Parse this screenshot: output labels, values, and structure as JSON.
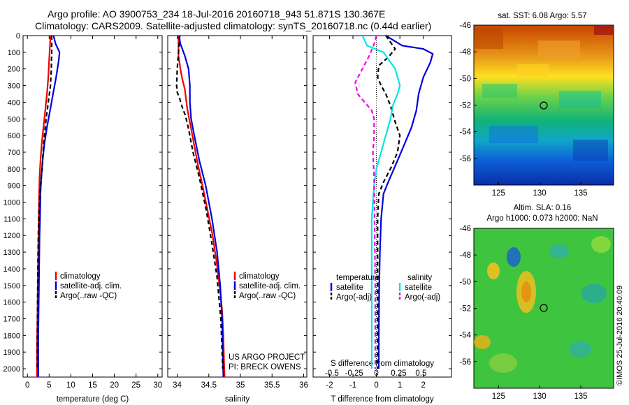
{
  "header": {
    "line1": "Argo profile: AO 3900753_234 18-Jul-2016 20160718_943 51.871S 130.367E",
    "line2": "Climatology: CARS2009. Satellite-adjusted climatology: synTS_20160718.nc (0.44d earlier)"
  },
  "credit": "©IMOS 25-Jul-2016 20:40:09",
  "project": {
    "line1": "US ARGO PROJECT",
    "line2": "PI: BRECK OWENS"
  },
  "colors": {
    "red": "#ee0000",
    "blue": "#0000dd",
    "black": "#000000",
    "cyan": "#00e5e5",
    "magenta": "#ee00ee"
  },
  "chart_data": [
    {
      "type": "line",
      "id": "temp",
      "xlabel": "temperature (deg C)",
      "ylabel": "",
      "xlim": [
        -1,
        31
      ],
      "ylim": [
        2050,
        0
      ],
      "xticks": [
        0,
        5,
        10,
        15,
        20,
        25,
        30
      ],
      "yticks": [
        0,
        100,
        200,
        300,
        400,
        500,
        600,
        700,
        800,
        900,
        1000,
        1100,
        1200,
        1300,
        1400,
        1500,
        1600,
        1700,
        1800,
        1900,
        2000
      ],
      "legend": [
        "climatology",
        "satellite-adj. clim.",
        "Argo(..raw -QC)"
      ],
      "legend_position": "lower-right",
      "series": [
        {
          "name": "climatology",
          "color": "#ee0000",
          "style": "solid",
          "x": [
            5.3,
            5.2,
            5.0,
            4.8,
            4.5,
            4.1,
            3.7,
            3.3,
            3.0,
            2.8,
            2.7,
            2.6,
            2.55,
            2.5,
            2.45,
            2.4,
            2.35,
            2.3,
            2.25,
            2.2,
            2.2
          ],
          "y": [
            0,
            50,
            150,
            250,
            350,
            450,
            550,
            650,
            750,
            850,
            950,
            1100,
            1200,
            1300,
            1400,
            1500,
            1600,
            1700,
            1800,
            1900,
            2050
          ]
        },
        {
          "name": "satellite-adj. clim.",
          "color": "#0000dd",
          "style": "solid",
          "x": [
            6.0,
            6.5,
            7.4,
            7.2,
            6.6,
            5.9,
            5.2,
            4.5,
            3.9,
            3.5,
            3.2,
            3.0,
            2.9,
            2.8,
            2.75,
            2.7,
            2.65,
            2.6,
            2.55,
            2.5,
            2.5
          ],
          "y": [
            0,
            50,
            100,
            150,
            250,
            350,
            450,
            550,
            650,
            750,
            850,
            950,
            1100,
            1200,
            1300,
            1400,
            1500,
            1600,
            1700,
            1800,
            2050
          ]
        },
        {
          "name": "Argo(..raw -QC)",
          "color": "#000000",
          "style": "dashed",
          "x": [
            5.6,
            5.6,
            5.5,
            5.3,
            4.8,
            4.3,
            3.9,
            3.6,
            3.4,
            3.0,
            2.8,
            2.6,
            2.5,
            2.45,
            2.4,
            2.35,
            2.3,
            2.3
          ],
          "y": [
            0,
            100,
            200,
            300,
            400,
            500,
            600,
            700,
            800,
            900,
            1000,
            1100,
            1200,
            1300,
            1400,
            1600,
            1800,
            2000
          ]
        }
      ]
    },
    {
      "type": "line",
      "id": "sal",
      "xlabel": "salinity",
      "ylabel": "",
      "xlim": [
        33.85,
        36.05
      ],
      "ylim": [
        2050,
        0
      ],
      "xticks": [
        34,
        34.5,
        35,
        35.5,
        36
      ],
      "legend": [
        "climatology",
        "satellite-adj. clim.",
        "Argo(..raw -QC)"
      ],
      "legend_position": "lower-right",
      "series": [
        {
          "name": "climatology",
          "color": "#ee0000",
          "style": "solid",
          "x": [
            34.02,
            34.02,
            34.05,
            34.08,
            34.12,
            34.14,
            34.16,
            34.2,
            34.25,
            34.32,
            34.4,
            34.48,
            34.56,
            34.62,
            34.67,
            34.71,
            34.73,
            34.74,
            34.75
          ],
          "y": [
            0,
            120,
            200,
            260,
            320,
            380,
            440,
            520,
            620,
            760,
            900,
            1050,
            1200,
            1350,
            1500,
            1650,
            1800,
            1950,
            2050
          ]
        },
        {
          "name": "satellite-adj. clim.",
          "color": "#0000dd",
          "style": "solid",
          "x": [
            34.03,
            34.05,
            34.12,
            34.18,
            34.2,
            34.2,
            34.22,
            34.27,
            34.35,
            34.45,
            34.55,
            34.63,
            34.68,
            34.71,
            34.72,
            34.73
          ],
          "y": [
            0,
            50,
            120,
            200,
            300,
            400,
            500,
            600,
            750,
            900,
            1100,
            1300,
            1500,
            1700,
            1900,
            2050
          ]
        },
        {
          "name": "Argo(..raw -QC)",
          "color": "#000000",
          "style": "dashed",
          "x": [
            34.04,
            34.02,
            34.0,
            33.99,
            34.0,
            34.04,
            34.08,
            34.13,
            34.18,
            34.25,
            34.35,
            34.46,
            34.55,
            34.63,
            34.69,
            34.72
          ],
          "y": [
            0,
            100,
            200,
            300,
            340,
            380,
            430,
            480,
            560,
            700,
            850,
            1050,
            1250,
            1450,
            1700,
            2000
          ]
        }
      ]
    },
    {
      "type": "line",
      "id": "diff",
      "xlabel": "T difference from climatology",
      "xlabel2": "S difference from climatology",
      "ylabel": "",
      "xlim": [
        -2.7,
        3.2
      ],
      "ylim": [
        2050,
        0
      ],
      "xticks": [
        -2,
        -1,
        0,
        1,
        2
      ],
      "xticks2_labels": [
        "-0.5",
        "-0.25",
        "0",
        "0.25",
        "0.5"
      ],
      "xticks2_pos": [
        -1.9,
        -0.95,
        0,
        0.95,
        1.9
      ],
      "legend_title_left": "temperature",
      "legend_title_right": "salinity",
      "legend": [
        "satellite",
        "Argo(-adj)",
        "satellite",
        "Argo(-adj)"
      ],
      "legend_position": "lower-right",
      "series": [
        {
          "name": "temperature satellite",
          "color": "#0000dd",
          "style": "solid",
          "x": [
            0.4,
            1.1,
            2.0,
            2.4,
            2.3,
            2.0,
            1.8,
            1.7,
            1.5,
            1.2,
            0.9,
            0.5,
            0.3,
            0.2,
            0.15,
            0.12,
            0.1,
            0.1
          ],
          "y": [
            0,
            60,
            80,
            110,
            160,
            250,
            350,
            450,
            550,
            650,
            750,
            880,
            950,
            1100,
            1300,
            1500,
            1800,
            2000
          ]
        },
        {
          "name": "temperature Argo(-adj)",
          "color": "#000000",
          "style": "dashed",
          "x": [
            0.4,
            0.6,
            0.8,
            0.5,
            0.1,
            0.05,
            0.2,
            0.4,
            0.6,
            0.8,
            1.0,
            0.9,
            0.6,
            0.3,
            0.1,
            0.05,
            0.05
          ],
          "y": [
            0,
            40,
            80,
            130,
            180,
            250,
            300,
            350,
            420,
            520,
            600,
            700,
            800,
            880,
            950,
            1100,
            2000
          ]
        },
        {
          "name": "salinity satellite",
          "color": "#00e5e5",
          "style": "solid",
          "x": [
            -0.6,
            -0.4,
            0.3,
            0.8,
            1.0,
            0.9,
            0.7,
            0.6,
            0.4,
            0.2,
            0.0,
            -0.1,
            -0.2,
            -0.2,
            -0.2,
            -0.2
          ],
          "y": [
            0,
            60,
            100,
            200,
            300,
            350,
            420,
            500,
            600,
            700,
            800,
            900,
            1100,
            1400,
            1700,
            2000
          ]
        },
        {
          "name": "salinity Argo(-adj)",
          "color": "#ee00ee",
          "style": "dashed",
          "x": [
            0.0,
            -0.1,
            -0.3,
            -0.6,
            -0.9,
            -0.8,
            -0.2,
            -0.1,
            -0.1,
            -0.15,
            -0.1,
            -0.08,
            -0.05,
            -0.05
          ],
          "y": [
            0,
            50,
            120,
            200,
            280,
            350,
            450,
            500,
            600,
            700,
            850,
            1100,
            1500,
            2000
          ]
        }
      ]
    },
    {
      "type": "heatmap",
      "id": "sst_map",
      "title": "sat. SST: 6.08 Argo: 5.57",
      "xlim": [
        122,
        139
      ],
      "ylim": [
        -58,
        -46
      ],
      "xticks": [
        125,
        130,
        135
      ],
      "yticks": [
        -46,
        -48,
        -50,
        -52,
        -54,
        -56
      ],
      "marker": {
        "lon": 130.367,
        "lat": -51.871
      }
    },
    {
      "type": "heatmap",
      "id": "sla_map",
      "title": "Altim. SLA: 0.16",
      "subtitle": "Argo h1000: 0.073 h2000: NaN",
      "xlim": [
        122,
        139
      ],
      "ylim": [
        -58,
        -46
      ],
      "xticks": [
        125,
        130,
        135
      ],
      "yticks": [
        -46,
        -48,
        -50,
        -52,
        -54,
        -56
      ],
      "marker": {
        "lon": 130.367,
        "lat": -51.871
      }
    }
  ]
}
